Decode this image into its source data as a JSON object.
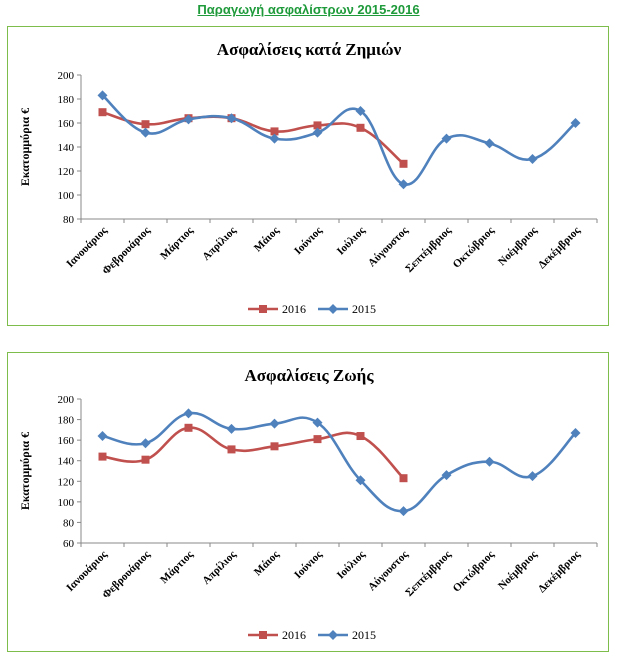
{
  "page_title": "Παραγωγή ασφαλίστρων 2015-2016",
  "colors": {
    "series_2016": "#c0504d",
    "series_2015": "#4f81bd",
    "panel_border": "#7cbd4c",
    "title_green": "#1e9a3a"
  },
  "chart_data": [
    {
      "type": "line",
      "title": "Ασφαλίσεις κατά Ζημιών",
      "ylabel": "Εκατομμύρια €",
      "xlabel": "",
      "ylim": [
        80,
        200
      ],
      "yticks": [
        80,
        100,
        120,
        140,
        160,
        180,
        200
      ],
      "grid": false,
      "legend": "bottom",
      "categories": [
        "Ιανουάριος",
        "Φεβρουάριος",
        "Μάρτιος",
        "Απρίλιος",
        "Μάιος",
        "Ιούνιος",
        "Ιούλιος",
        "Αύγουστος",
        "Σεπτέμβριος",
        "Οκτώβριος",
        "Νοέμβριος",
        "Δεκέμβριος"
      ],
      "series": [
        {
          "name": "2016",
          "marker": "square",
          "values": [
            169,
            159,
            164,
            164,
            153,
            158,
            156,
            126,
            null,
            null,
            null,
            null
          ]
        },
        {
          "name": "2015",
          "marker": "diamond",
          "values": [
            183,
            152,
            163,
            164,
            147,
            152,
            170,
            109,
            147,
            143,
            130,
            160
          ]
        }
      ]
    },
    {
      "type": "line",
      "title": "Ασφαλίσεις Ζωής",
      "ylabel": "Εκατομμύρια €",
      "xlabel": "",
      "ylim": [
        60,
        200
      ],
      "yticks": [
        60,
        80,
        100,
        120,
        140,
        160,
        180,
        200
      ],
      "grid": false,
      "legend": "bottom",
      "categories": [
        "Ιανουάριος",
        "Φεβρουάριος",
        "Μάρτιος",
        "Απρίλιος",
        "Μάιος",
        "Ιούνιος",
        "Ιούλιος",
        "Αύγουστος",
        "Σεπτέμβριος",
        "Οκτώβριος",
        "Νοέμβριος",
        "Δεκέμβριος"
      ],
      "series": [
        {
          "name": "2016",
          "marker": "square",
          "values": [
            144,
            141,
            172,
            151,
            154,
            161,
            164,
            123,
            null,
            null,
            null,
            null
          ]
        },
        {
          "name": "2015",
          "marker": "diamond",
          "values": [
            164,
            157,
            186,
            171,
            176,
            177,
            121,
            91,
            126,
            139,
            125,
            167
          ]
        }
      ]
    }
  ]
}
